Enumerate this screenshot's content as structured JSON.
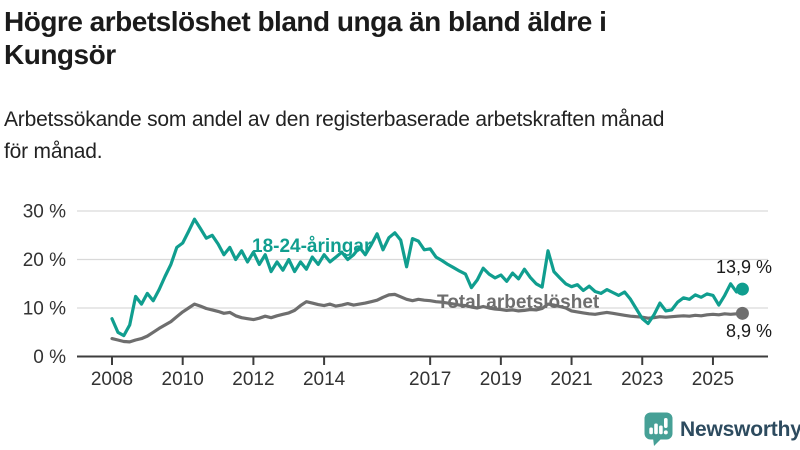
{
  "header": {
    "title_line1": "Högre arbetslöshet bland unga än bland äldre i",
    "title_line2": "Kungsör",
    "subtitle_line1": "Arbetssökande som andel av den registerbaserade arbetskraften månad",
    "subtitle_line2": "för månad."
  },
  "chart_data": {
    "type": "line",
    "title": "Högre arbetslöshet bland unga än bland äldre i Kungsör",
    "subtitle": "Arbetssökande som andel av den registerbaserade arbetskraften månad för månad.",
    "y_unit": "%",
    "ylim": [
      0,
      32
    ],
    "grid": true,
    "legend_position": "inline-labels",
    "x_start_year": 2008,
    "points_per_year": 6,
    "x_end_year": 2025.83,
    "y_ticks": [
      {
        "value": 0,
        "label": "0 %"
      },
      {
        "value": 10,
        "label": "10 %"
      },
      {
        "value": 20,
        "label": "20 %"
      },
      {
        "value": 30,
        "label": "30 %"
      }
    ],
    "x_ticks": [
      {
        "year": 2008,
        "label": "2008"
      },
      {
        "year": 2010,
        "label": "2010"
      },
      {
        "year": 2012,
        "label": "2012"
      },
      {
        "year": 2014,
        "label": "2014"
      },
      {
        "year": 2017,
        "label": "2017"
      },
      {
        "year": 2019,
        "label": "2019"
      },
      {
        "year": 2021,
        "label": "2021"
      },
      {
        "year": 2023,
        "label": "2023"
      },
      {
        "year": 2025,
        "label": "2025"
      }
    ],
    "series": [
      {
        "name": "18-24-åringar",
        "color": "#109e8f",
        "end_label": "13,9 %",
        "end_value": 13.9,
        "values": [
          7.8,
          5.0,
          4.3,
          6.5,
          12.4,
          10.8,
          13.0,
          11.5,
          13.8,
          16.5,
          19.0,
          22.5,
          23.4,
          25.8,
          28.3,
          26.4,
          24.4,
          25.0,
          23.2,
          21.0,
          22.5,
          20.0,
          21.8,
          19.5,
          21.5,
          19.0,
          21.0,
          17.5,
          19.5,
          17.8,
          20.0,
          17.5,
          19.5,
          18.0,
          20.5,
          19.0,
          21.0,
          19.5,
          20.5,
          21.5,
          20.0,
          21.0,
          22.5,
          21.0,
          23.0,
          25.3,
          22.0,
          24.5,
          25.5,
          24.0,
          18.5,
          24.3,
          23.8,
          22.0,
          22.2,
          20.5,
          19.8,
          19.0,
          18.3,
          17.6,
          17.0,
          14.2,
          15.8,
          18.2,
          17.0,
          16.2,
          16.8,
          15.5,
          17.2,
          16.0,
          18.0,
          16.3,
          15.0,
          14.3,
          21.8,
          17.5,
          16.2,
          15.0,
          14.4,
          14.8,
          13.6,
          14.5,
          13.4,
          13.0,
          13.8,
          13.2,
          12.6,
          13.3,
          11.8,
          9.8,
          7.8,
          6.8,
          8.6,
          11.0,
          9.4,
          9.6,
          11.2,
          12.1,
          11.8,
          12.7,
          12.2,
          12.9,
          12.6,
          10.6,
          12.6,
          15.0,
          13.3,
          13.9
        ]
      },
      {
        "name": "Total arbetslöshet",
        "color": "#6e6e6e",
        "end_label": "8,9 %",
        "end_value": 8.9,
        "values": [
          3.7,
          3.4,
          3.1,
          3.0,
          3.4,
          3.7,
          4.2,
          5.0,
          5.8,
          6.5,
          7.2,
          8.2,
          9.2,
          10.0,
          10.8,
          10.4,
          9.9,
          9.6,
          9.3,
          8.9,
          9.1,
          8.4,
          8.0,
          7.8,
          7.6,
          7.9,
          8.3,
          8.0,
          8.4,
          8.7,
          9.0,
          9.5,
          10.5,
          11.3,
          11.0,
          10.7,
          10.5,
          10.8,
          10.4,
          10.6,
          10.9,
          10.6,
          10.8,
          11.0,
          11.3,
          11.6,
          12.2,
          12.7,
          12.8,
          12.3,
          11.8,
          11.5,
          11.8,
          11.6,
          11.5,
          11.3,
          11.2,
          11.0,
          10.8,
          10.6,
          10.5,
          10.2,
          10.0,
          10.3,
          10.0,
          9.8,
          9.7,
          9.5,
          9.6,
          9.4,
          9.5,
          9.7,
          9.6,
          9.9,
          10.8,
          10.6,
          10.3,
          10.0,
          9.4,
          9.2,
          9.0,
          8.8,
          8.7,
          8.9,
          9.1,
          8.9,
          8.7,
          8.5,
          8.3,
          8.2,
          8.1,
          7.9,
          8.0,
          8.2,
          8.1,
          8.2,
          8.3,
          8.4,
          8.3,
          8.5,
          8.4,
          8.6,
          8.7,
          8.6,
          8.8,
          8.7,
          8.8,
          8.9
        ]
      }
    ]
  },
  "branding": {
    "logo_text": "Newsworthy",
    "logo_icon": "bar-chart-speech-bubble-icon",
    "icon_bg": "#46a096",
    "icon_glyph": "#ffffff",
    "text_color": "#2d4b5f"
  },
  "colors": {
    "accent_teal": "#109e8f",
    "series_gray": "#6e6e6e",
    "grid": "#d9d9d9",
    "axis": "#3d3d3d",
    "axis_text": "#333333",
    "title_text": "#1b1b1b",
    "value_label_text": "#1a1a1a",
    "background": "#ffffff"
  }
}
